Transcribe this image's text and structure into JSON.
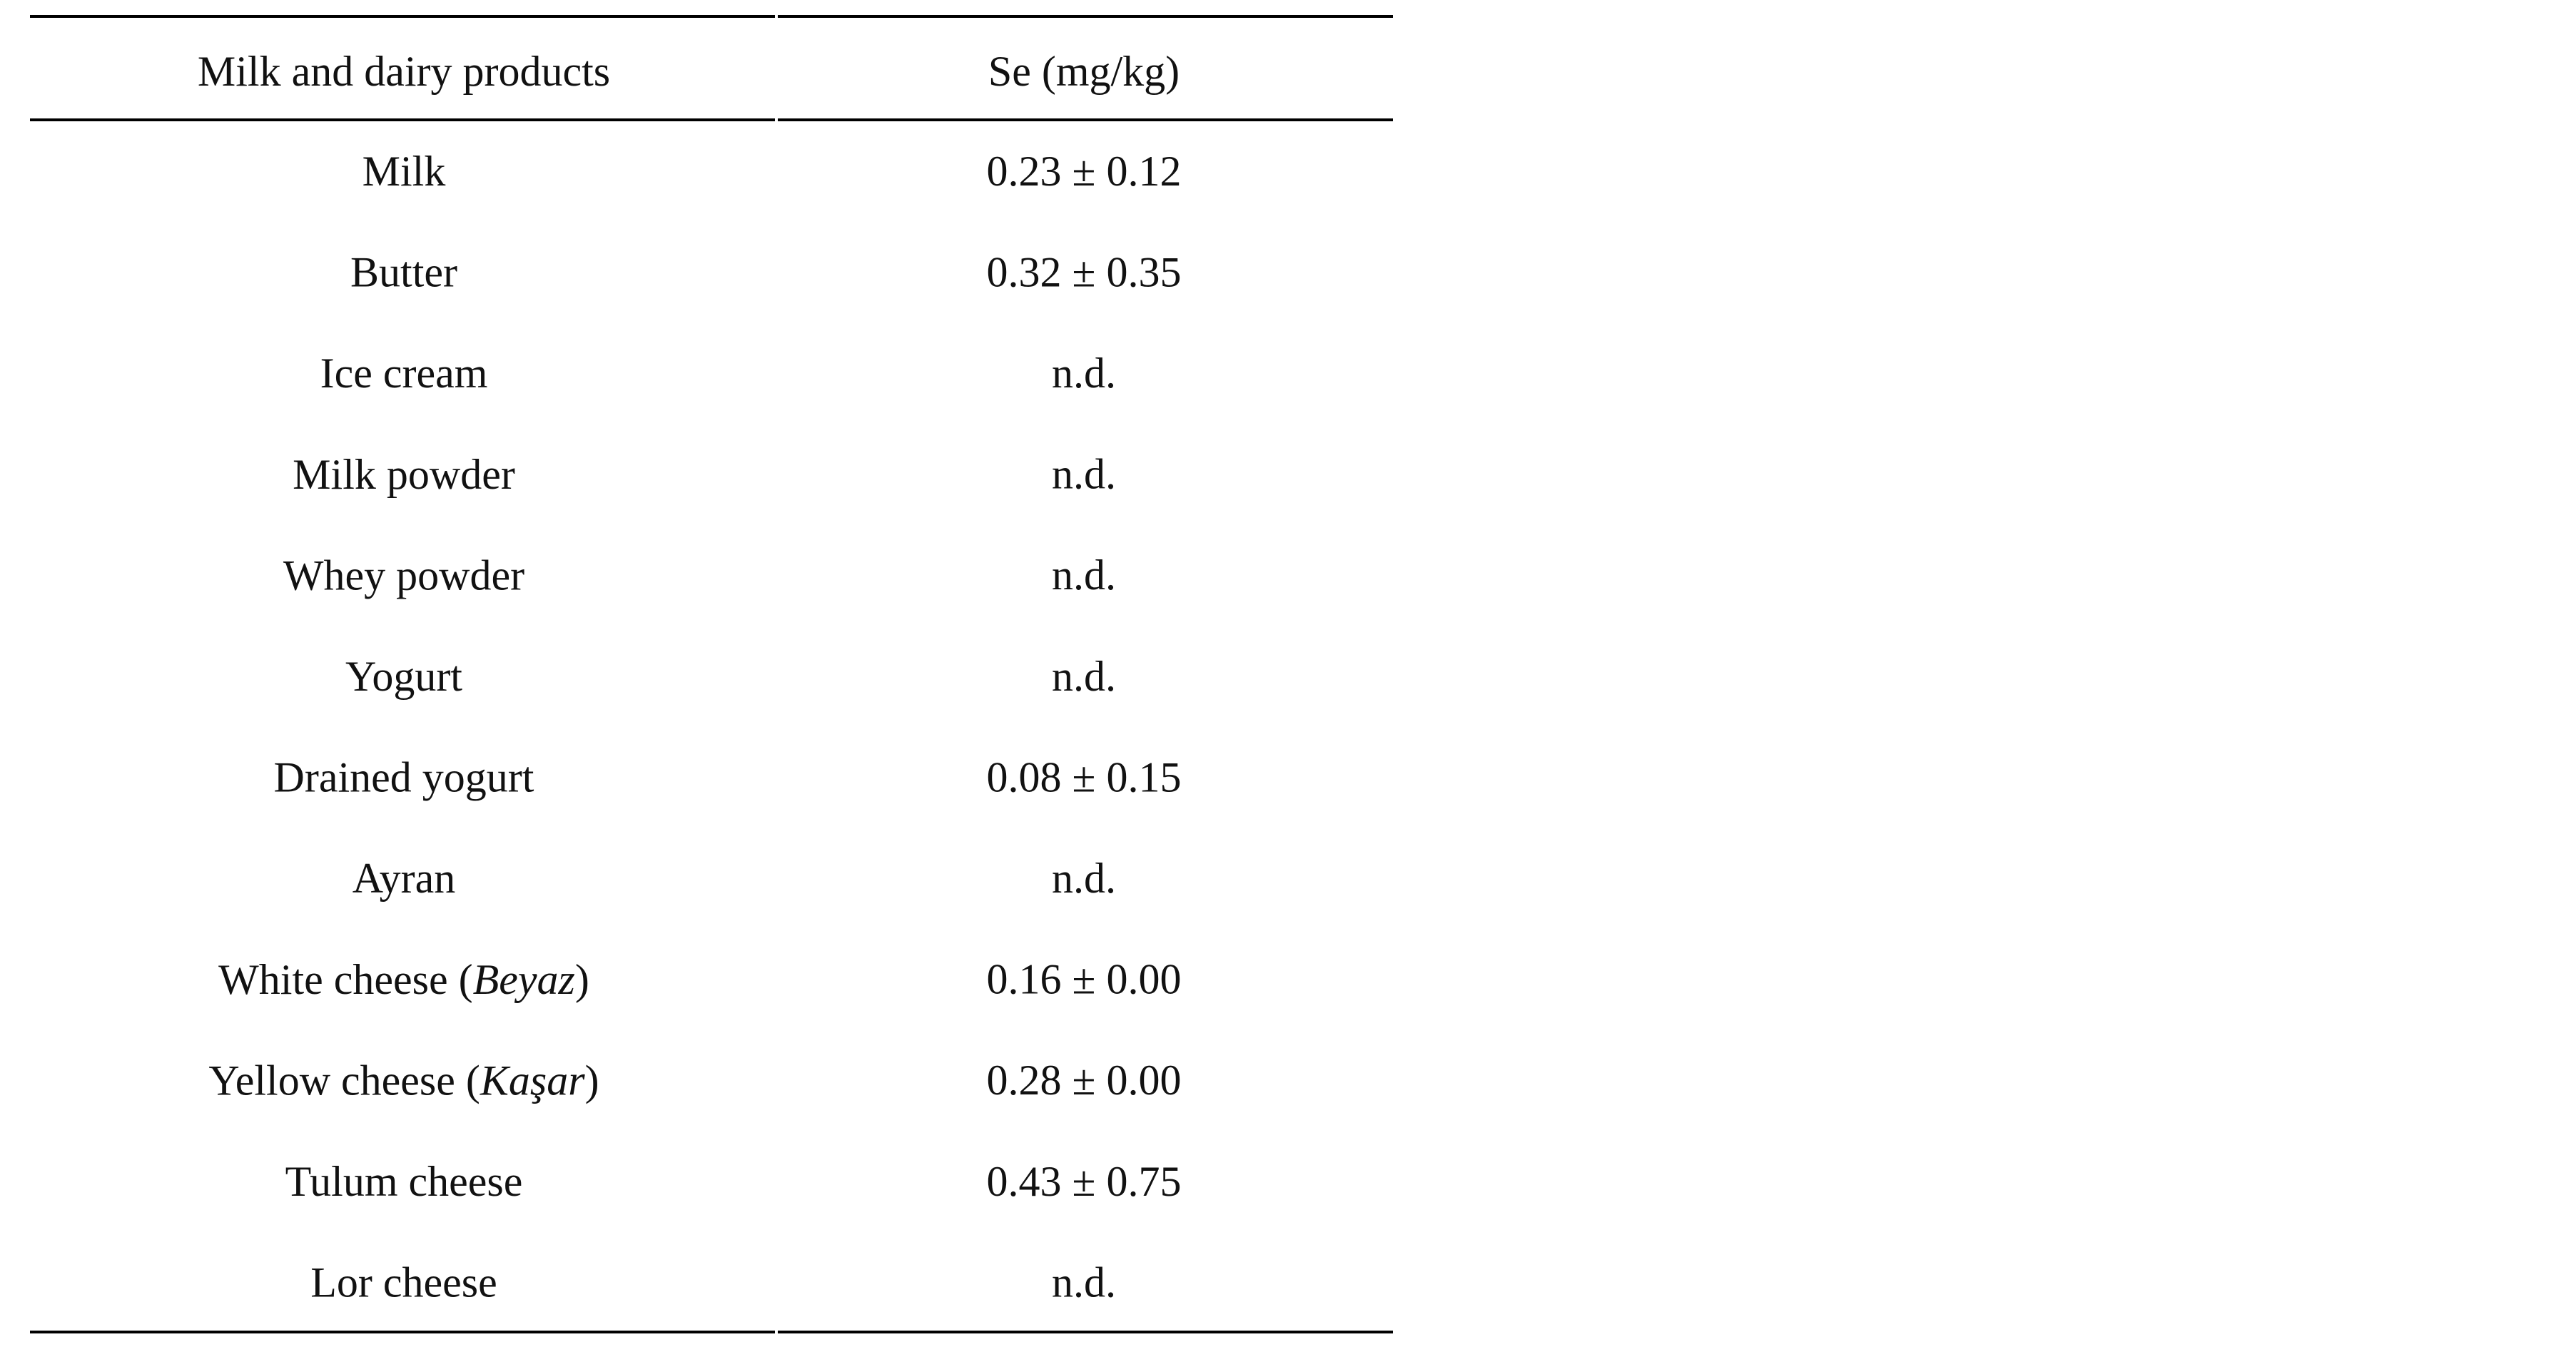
{
  "table": {
    "header": [
      "Milk and dairy products",
      "Se (mg/kg)"
    ],
    "rows": [
      {
        "product": [
          "Milk"
        ],
        "se": "0.23 ± 0.12"
      },
      {
        "product": [
          "Butter"
        ],
        "se": "0.32 ± 0.35"
      },
      {
        "product": [
          "Ice cream"
        ],
        "se": "n.d."
      },
      {
        "product": [
          "Milk powder"
        ],
        "se": "n.d."
      },
      {
        "product": [
          "Whey powder"
        ],
        "se": "n.d."
      },
      {
        "product": [
          "Yogurt"
        ],
        "se": "n.d."
      },
      {
        "product": [
          "Drained yogurt"
        ],
        "se": "0.08 ± 0.15"
      },
      {
        "product": [
          "Ayran"
        ],
        "se": "n.d."
      },
      {
        "product": [
          "White cheese (",
          "Beyaz",
          ")"
        ],
        "se": "0.16 ± 0.00"
      },
      {
        "product": [
          "Yellow cheese (",
          "Kaşar",
          ")"
        ],
        "se": "0.28 ± 0.00"
      },
      {
        "product": [
          "Tulum cheese"
        ],
        "se": "0.43 ± 0.75"
      },
      {
        "product": [
          "Lor cheese"
        ],
        "se": "n.d."
      }
    ]
  }
}
